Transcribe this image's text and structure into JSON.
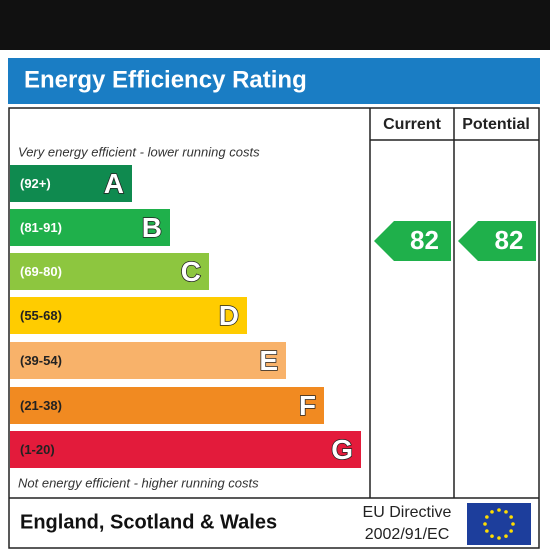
{
  "header": {
    "title": "Energy Efficiency Rating"
  },
  "columns": {
    "current": "Current",
    "potential": "Potential"
  },
  "top_note": "Very energy efficient - lower running costs",
  "bottom_note": "Not energy efficient - higher running costs",
  "bands": [
    {
      "range": "(92+)",
      "letter": "A",
      "color": "#0f8a4f"
    },
    {
      "range": "(81-91)",
      "letter": "B",
      "color": "#1fb04b"
    },
    {
      "range": "(69-80)",
      "letter": "C",
      "color": "#8dc63f"
    },
    {
      "range": "(55-68)",
      "letter": "D",
      "color": "#ffcc00"
    },
    {
      "range": "(39-54)",
      "letter": "E",
      "color": "#f8b26a"
    },
    {
      "range": "(21-38)",
      "letter": "F",
      "color": "#f18a21"
    },
    {
      "range": "(1-20)",
      "letter": "G",
      "color": "#e31b3b"
    }
  ],
  "current": {
    "value": 82,
    "color": "#1fb04b"
  },
  "potential": {
    "value": 82,
    "color": "#1fb04b"
  },
  "footer": {
    "region": "England, Scotland & Wales",
    "directive": [
      "EU Directive",
      "2002/91/EC"
    ]
  }
}
